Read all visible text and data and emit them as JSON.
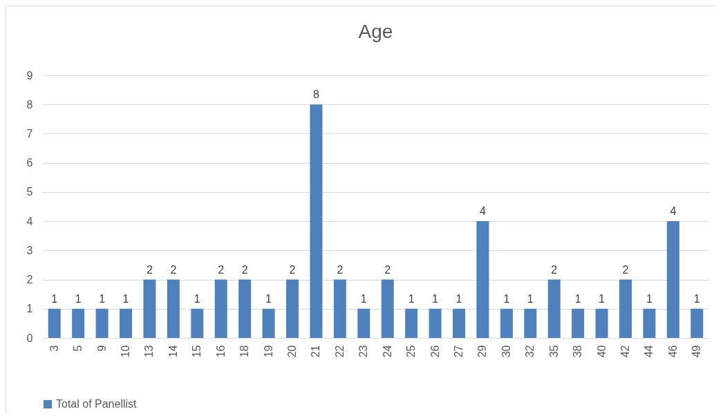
{
  "chart_data": {
    "type": "bar",
    "title": "Age",
    "categories": [
      "3",
      "5",
      "9",
      "10",
      "13",
      "14",
      "15",
      "16",
      "18",
      "19",
      "20",
      "21",
      "22",
      "23",
      "24",
      "25",
      "26",
      "27",
      "29",
      "30",
      "32",
      "35",
      "38",
      "40",
      "42",
      "44",
      "46",
      "49"
    ],
    "series": [
      {
        "name": "Total of Panellist",
        "color": "#4f81bd",
        "values": [
          1,
          1,
          1,
          1,
          2,
          2,
          1,
          2,
          2,
          1,
          2,
          8,
          2,
          1,
          2,
          1,
          1,
          1,
          4,
          1,
          1,
          2,
          1,
          1,
          2,
          1,
          4,
          1
        ]
      }
    ],
    "ylim": [
      0,
      9
    ],
    "yticks": [
      0,
      1,
      2,
      3,
      4,
      5,
      6,
      7,
      8,
      9
    ],
    "grid": "y",
    "legend": "bottom",
    "data_labels": true
  }
}
